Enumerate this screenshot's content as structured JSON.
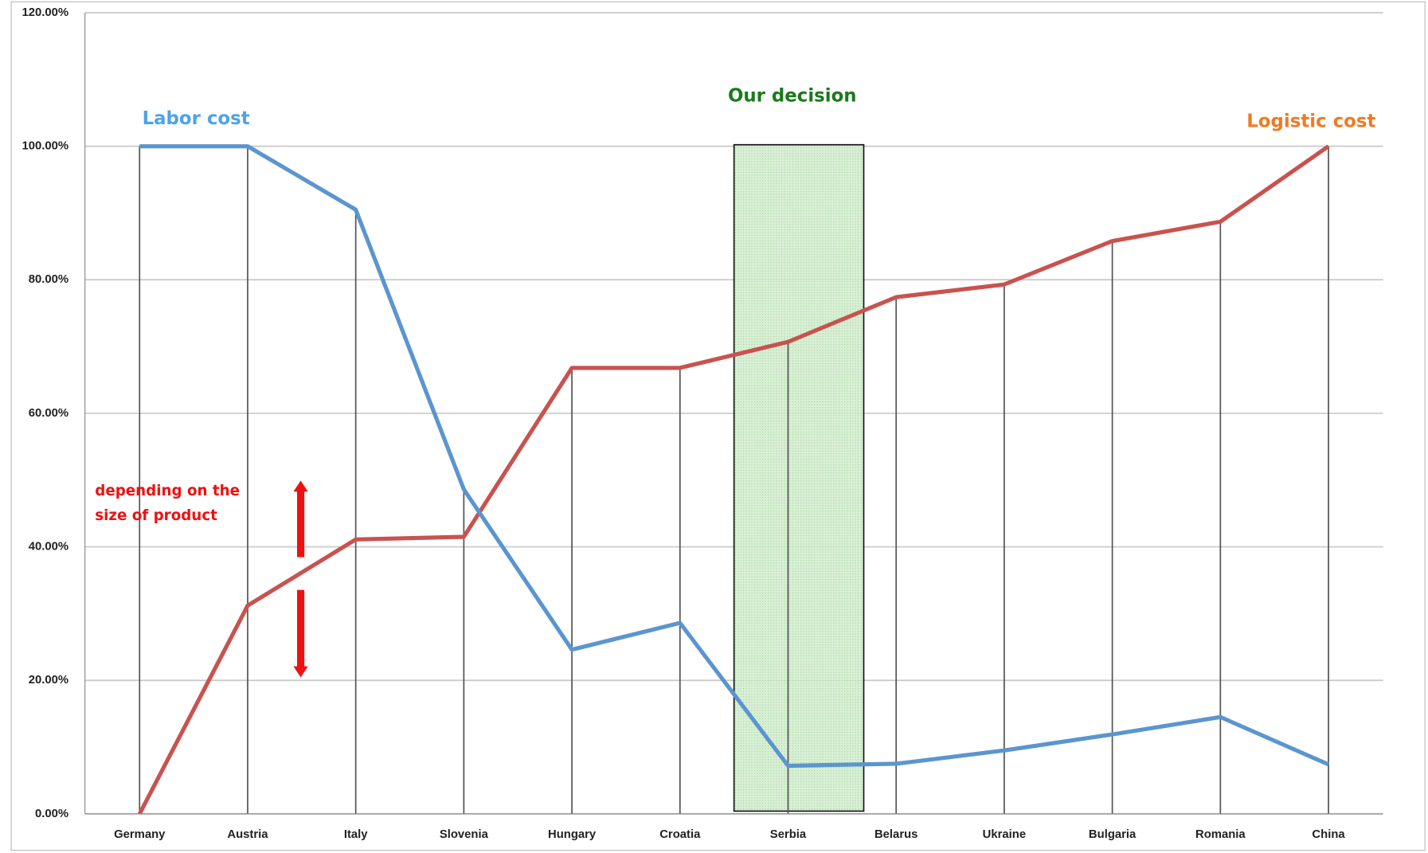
{
  "chart_data": {
    "type": "line",
    "categories": [
      "Germany",
      "Austria",
      "Italy",
      "Slovenia",
      "Hungary",
      "Croatia",
      "Serbia",
      "Belarus",
      "Ukraine",
      "Bulgaria",
      "Romania",
      "China"
    ],
    "series": [
      {
        "name": "Labor cost",
        "color": "#5b95cf",
        "values": [
          100,
          100,
          90.5,
          48.6,
          24.6,
          28.6,
          7.2,
          7.5,
          9.5,
          11.9,
          14.5,
          7.4
        ]
      },
      {
        "name": "Logistic cost",
        "color": "#c9524f",
        "values": [
          0,
          31.2,
          41.1,
          41.5,
          66.8,
          66.8,
          70.7,
          77.4,
          79.3,
          85.8,
          88.7,
          100
        ]
      }
    ],
    "ylim": [
      0,
      120
    ],
    "yticks": [
      {
        "value": 0,
        "label": "0.00%"
      },
      {
        "value": 20,
        "label": "20.00%"
      },
      {
        "value": 40,
        "label": "40.00%"
      },
      {
        "value": 60,
        "label": "60.00%"
      },
      {
        "value": 80,
        "label": "80.00%"
      },
      {
        "value": 100,
        "label": "100.00%"
      },
      {
        "value": 120,
        "label": "120.00%"
      }
    ],
    "grid": true,
    "highlight_label": "Our decision",
    "range_note": [
      "depending on the",
      "size of product"
    ]
  }
}
